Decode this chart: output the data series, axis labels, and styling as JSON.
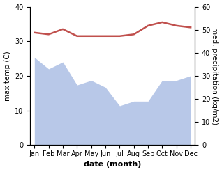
{
  "months": [
    "Jan",
    "Feb",
    "Mar",
    "Apr",
    "May",
    "Jun",
    "Jul",
    "Aug",
    "Sep",
    "Oct",
    "Nov",
    "Dec"
  ],
  "month_x": [
    0,
    1,
    2,
    3,
    4,
    5,
    6,
    7,
    8,
    9,
    10,
    11
  ],
  "max_temp": [
    32.5,
    32.0,
    33.5,
    31.5,
    31.5,
    31.5,
    31.5,
    32.0,
    34.5,
    35.5,
    34.5,
    34.0
  ],
  "precipitation": [
    38.0,
    33.0,
    36.0,
    26.0,
    28.0,
    25.0,
    17.0,
    19.0,
    19.0,
    28.0,
    28.0,
    30.0
  ],
  "temp_color": "#c0504d",
  "precip_fill_color": "#b8c8e8",
  "precip_edge_color": "#b8c8e8",
  "xlabel": "date (month)",
  "ylabel_left": "max temp (C)",
  "ylabel_right": "med. precipitation (kg/m2)",
  "ylim_left": [
    0,
    40
  ],
  "ylim_right": [
    0,
    60
  ],
  "yticks_left": [
    0,
    10,
    20,
    30,
    40
  ],
  "yticks_right": [
    0,
    10,
    20,
    30,
    40,
    50,
    60
  ],
  "bg_color": "#ffffff",
  "line_width": 1.8,
  "label_fontsize": 7.5,
  "tick_fontsize": 7.0,
  "xlabel_fontsize": 8.0
}
